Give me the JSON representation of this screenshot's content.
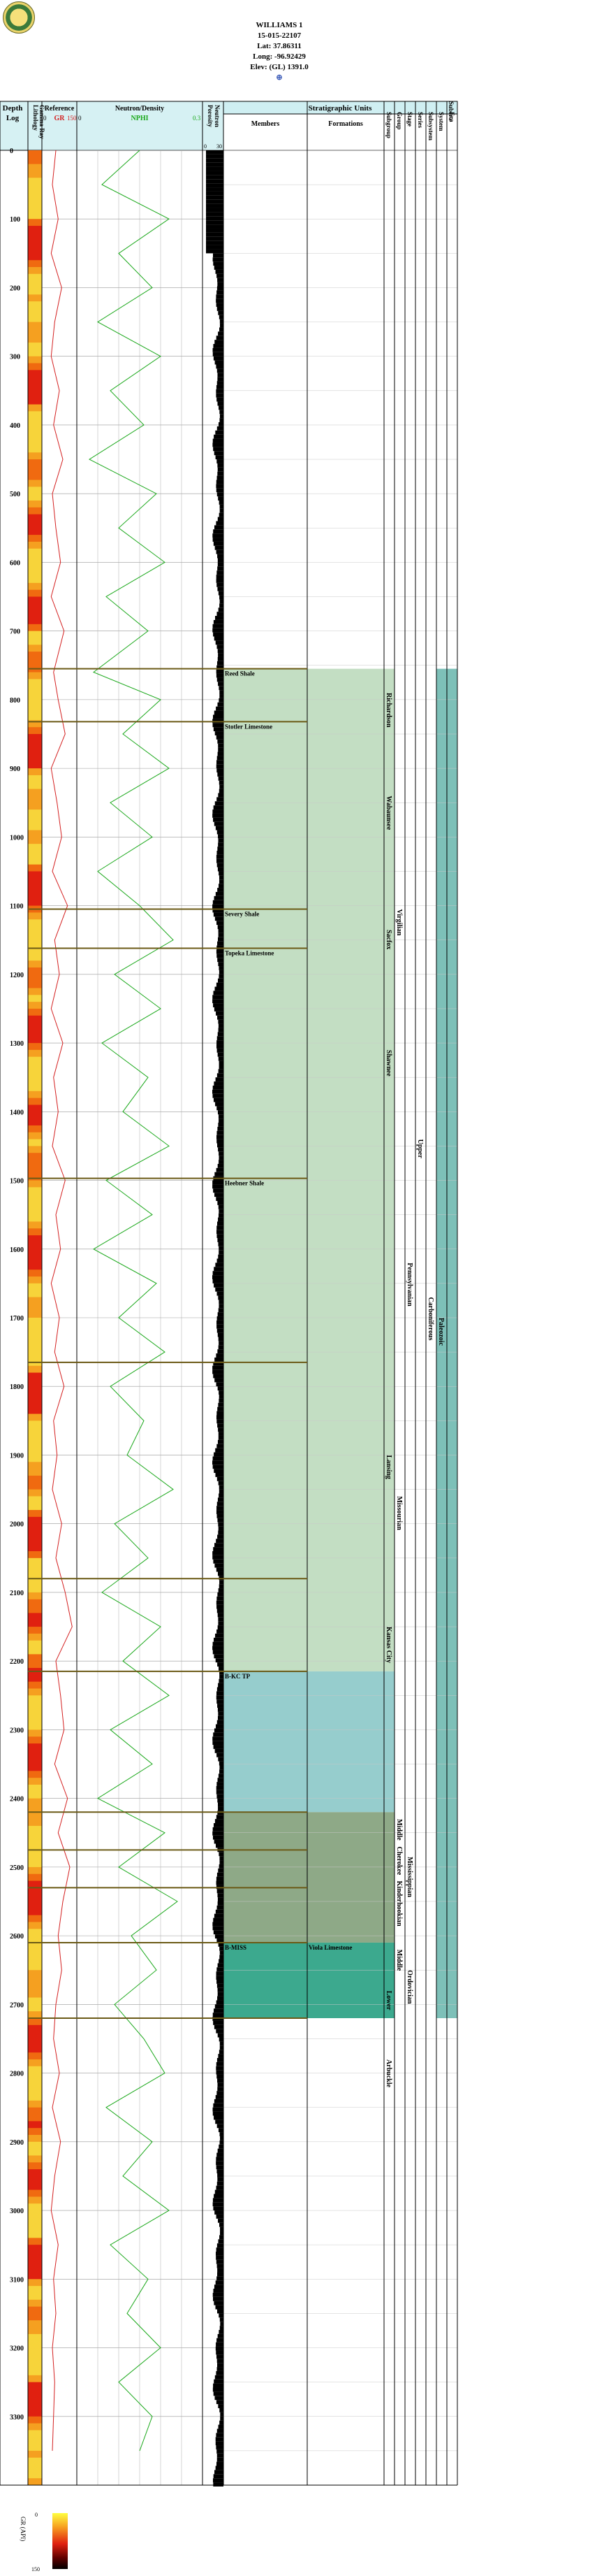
{
  "well": {
    "name": "WILLIAMS 1",
    "api": "15-015-22107",
    "lat": "Lat: 37.86311",
    "long": "Long: -96.92429",
    "elev": "Elev: (GL) 1391.0",
    "symbol": "⊕"
  },
  "headers": {
    "depth": "Depth",
    "log": "Log",
    "lithology": "Lithology",
    "gamma_ray": "Gamma Ray",
    "reference": "Reference",
    "gr": "GR",
    "gr_min": "0",
    "gr_max": "150",
    "neutron_density": "Neutron/Density",
    "nphi": "NPHI",
    "nphi_min": "0",
    "nphi_max": "0.3",
    "porosity": "Porosity",
    "neutron": "Neutron",
    "por_min": "0",
    "por_max": "30",
    "strat_units": "Stratigraphic Units",
    "members": "Members",
    "formations": "Formations",
    "rank_labels": [
      "Subgroup",
      "Group",
      "Stage",
      "Series",
      "Subsystem",
      "System",
      "Era"
    ],
    "era_extra": "Subera"
  },
  "legend": {
    "label": "GR (API)",
    "min": "0",
    "max": "150"
  },
  "colors": {
    "gr_curve": "#d42020",
    "nphi_curve": "#1aa81a",
    "header_bg": "#cfeff2",
    "strat_light": "#b8d8b8",
    "strat_teal": "#84c4c4",
    "strat_olive": "#7a9a72",
    "strat_dark": "#1a9a7a",
    "paleozoic": "#6fb9b0",
    "formation_line": "#6b5a16"
  },
  "chart_data": {
    "type": "line",
    "title": "WILLIAMS 1",
    "ylabel": "Depth",
    "ylim": [
      0,
      3400
    ],
    "depth_ticks": [
      0,
      100,
      200,
      300,
      400,
      500,
      600,
      700,
      800,
      900,
      1000,
      1100,
      1200,
      1300,
      1400,
      1500,
      1600,
      1700,
      1800,
      1900,
      2000,
      2100,
      2200,
      2300,
      2400,
      2500,
      2600,
      2700,
      2800,
      2900,
      3000,
      3100,
      3200,
      3300
    ],
    "series": [
      {
        "name": "GR",
        "xlim": [
          0,
          150
        ],
        "values_note": "Gamma ray curve sampled by depth"
      },
      {
        "name": "NPHI",
        "xlim": [
          0,
          0.3
        ],
        "values_note": "Neutron porosity curve sampled by depth"
      }
    ],
    "gr_samples": [
      [
        0,
        60
      ],
      [
        50,
        45
      ],
      [
        100,
        70
      ],
      [
        150,
        40
      ],
      [
        200,
        85
      ],
      [
        250,
        55
      ],
      [
        300,
        40
      ],
      [
        350,
        75
      ],
      [
        400,
        50
      ],
      [
        450,
        90
      ],
      [
        500,
        45
      ],
      [
        550,
        60
      ],
      [
        600,
        80
      ],
      [
        650,
        40
      ],
      [
        700,
        95
      ],
      [
        760,
        50
      ],
      [
        800,
        70
      ],
      [
        850,
        100
      ],
      [
        900,
        40
      ],
      [
        950,
        65
      ],
      [
        1000,
        85
      ],
      [
        1050,
        45
      ],
      [
        1100,
        110
      ],
      [
        1150,
        55
      ],
      [
        1200,
        75
      ],
      [
        1250,
        40
      ],
      [
        1300,
        90
      ],
      [
        1350,
        50
      ],
      [
        1400,
        70
      ],
      [
        1450,
        45
      ],
      [
        1500,
        100
      ],
      [
        1550,
        60
      ],
      [
        1600,
        80
      ],
      [
        1650,
        40
      ],
      [
        1700,
        75
      ],
      [
        1750,
        55
      ],
      [
        1800,
        95
      ],
      [
        1850,
        50
      ],
      [
        1900,
        65
      ],
      [
        1950,
        45
      ],
      [
        2000,
        85
      ],
      [
        2050,
        60
      ],
      [
        2100,
        100
      ],
      [
        2150,
        130
      ],
      [
        2200,
        60
      ],
      [
        2250,
        80
      ],
      [
        2300,
        95
      ],
      [
        2350,
        55
      ],
      [
        2400,
        110
      ],
      [
        2450,
        70
      ],
      [
        2500,
        120
      ],
      [
        2550,
        90
      ],
      [
        2600,
        70
      ],
      [
        2650,
        85
      ],
      [
        2700,
        60
      ],
      [
        2750,
        50
      ],
      [
        2800,
        75
      ],
      [
        2850,
        45
      ],
      [
        2900,
        80
      ],
      [
        2950,
        55
      ],
      [
        3000,
        40
      ],
      [
        3050,
        70
      ],
      [
        3100,
        50
      ],
      [
        3150,
        60
      ],
      [
        3200,
        45
      ],
      [
        3250,
        55
      ],
      [
        3300,
        50
      ],
      [
        3350,
        45
      ]
    ],
    "nphi_samples": [
      [
        0,
        0.15
      ],
      [
        50,
        0.24
      ],
      [
        100,
        0.08
      ],
      [
        150,
        0.2
      ],
      [
        200,
        0.12
      ],
      [
        250,
        0.25
      ],
      [
        300,
        0.1
      ],
      [
        350,
        0.22
      ],
      [
        400,
        0.14
      ],
      [
        450,
        0.27
      ],
      [
        500,
        0.11
      ],
      [
        550,
        0.2
      ],
      [
        600,
        0.09
      ],
      [
        650,
        0.23
      ],
      [
        700,
        0.13
      ],
      [
        760,
        0.26
      ],
      [
        800,
        0.1
      ],
      [
        850,
        0.19
      ],
      [
        900,
        0.08
      ],
      [
        950,
        0.22
      ],
      [
        1000,
        0.12
      ],
      [
        1050,
        0.25
      ],
      [
        1100,
        0.15
      ],
      [
        1150,
        0.07
      ],
      [
        1200,
        0.21
      ],
      [
        1250,
        0.1
      ],
      [
        1300,
        0.24
      ],
      [
        1350,
        0.13
      ],
      [
        1400,
        0.19
      ],
      [
        1450,
        0.08
      ],
      [
        1500,
        0.23
      ],
      [
        1550,
        0.12
      ],
      [
        1600,
        0.26
      ],
      [
        1650,
        0.11
      ],
      [
        1700,
        0.2
      ],
      [
        1750,
        0.09
      ],
      [
        1800,
        0.22
      ],
      [
        1850,
        0.14
      ],
      [
        1900,
        0.18
      ],
      [
        1950,
        0.07
      ],
      [
        2000,
        0.21
      ],
      [
        2050,
        0.13
      ],
      [
        2100,
        0.24
      ],
      [
        2150,
        0.1
      ],
      [
        2200,
        0.19
      ],
      [
        2250,
        0.08
      ],
      [
        2300,
        0.22
      ],
      [
        2350,
        0.12
      ],
      [
        2400,
        0.25
      ],
      [
        2450,
        0.09
      ],
      [
        2500,
        0.2
      ],
      [
        2550,
        0.06
      ],
      [
        2600,
        0.17
      ],
      [
        2650,
        0.11
      ],
      [
        2700,
        0.21
      ],
      [
        2750,
        0.14
      ],
      [
        2800,
        0.09
      ],
      [
        2850,
        0.23
      ],
      [
        2900,
        0.12
      ],
      [
        2950,
        0.19
      ],
      [
        3000,
        0.08
      ],
      [
        3050,
        0.22
      ],
      [
        3100,
        0.13
      ],
      [
        3150,
        0.18
      ],
      [
        3200,
        0.1
      ],
      [
        3250,
        0.2
      ],
      [
        3300,
        0.12
      ],
      [
        3350,
        0.15
      ]
    ],
    "formation_tops": [
      {
        "depth": 755,
        "label": "Reed Shale"
      },
      {
        "depth": 832,
        "label": "Stotler Limestone"
      },
      {
        "depth": 1105,
        "label": "Severy Shale"
      },
      {
        "depth": 1162,
        "label": "Topeka Limestone"
      },
      {
        "depth": 1497,
        "label": "Heebner Shale"
      },
      {
        "depth": 1765,
        "label": ""
      },
      {
        "depth": 2080,
        "label": ""
      },
      {
        "depth": 2215,
        "label": "B-KC TP"
      },
      {
        "depth": 2420,
        "label": ""
      },
      {
        "depth": 2475,
        "label": ""
      },
      {
        "depth": 2530,
        "label": ""
      },
      {
        "depth": 2610,
        "label": "B-MISS"
      },
      {
        "depth": 2720,
        "label": ""
      }
    ],
    "formations_col": [
      {
        "depth": 2610,
        "label": "Viola Limestone"
      }
    ],
    "strat_blocks": [
      {
        "top": 755,
        "bottom": 2215,
        "color": "light"
      },
      {
        "top": 2215,
        "bottom": 2420,
        "color": "teal"
      },
      {
        "top": 2420,
        "bottom": 2610,
        "color": "olive"
      },
      {
        "top": 2610,
        "bottom": 2720,
        "color": "dark"
      }
    ],
    "rank_labels": [
      {
        "depth": 790,
        "col": "subgroup",
        "label": "Richardson"
      },
      {
        "depth": 940,
        "col": "subgroup",
        "label": "Wabaunsee"
      },
      {
        "depth": 1105,
        "col": "group",
        "label": "Virgilian"
      },
      {
        "depth": 1135,
        "col": "subgroup",
        "label": "Sacfox"
      },
      {
        "depth": 1310,
        "col": "subgroup",
        "label": "Shawnee"
      },
      {
        "depth": 1440,
        "col": "series",
        "label": "Upper"
      },
      {
        "depth": 1620,
        "col": "stage",
        "label": "Pennsylvanian"
      },
      {
        "depth": 1670,
        "col": "system",
        "label": "Carboniferous"
      },
      {
        "depth": 1700,
        "col": "era",
        "label": "Paleozoic"
      },
      {
        "depth": 1900,
        "col": "subgroup",
        "label": "Lansing"
      },
      {
        "depth": 1960,
        "col": "group",
        "label": "Missourian"
      },
      {
        "depth": 2150,
        "col": "subgroup",
        "label": "Kansas City"
      },
      {
        "depth": 2430,
        "col": "group",
        "label": "Middle"
      },
      {
        "depth": 2470,
        "col": "group",
        "label": "Cherokee"
      },
      {
        "depth": 2485,
        "col": "stage",
        "label": "Mississippian"
      },
      {
        "depth": 2520,
        "col": "group",
        "label": "Kinderhookian"
      },
      {
        "depth": 2620,
        "col": "group",
        "label": "Middle"
      },
      {
        "depth": 2680,
        "col": "subgroup",
        "label": "Lower"
      },
      {
        "depth": 2650,
        "col": "stage",
        "label": "Ordovician"
      },
      {
        "depth": 2780,
        "col": "subgroup",
        "label": "Arbuckle"
      }
    ]
  }
}
